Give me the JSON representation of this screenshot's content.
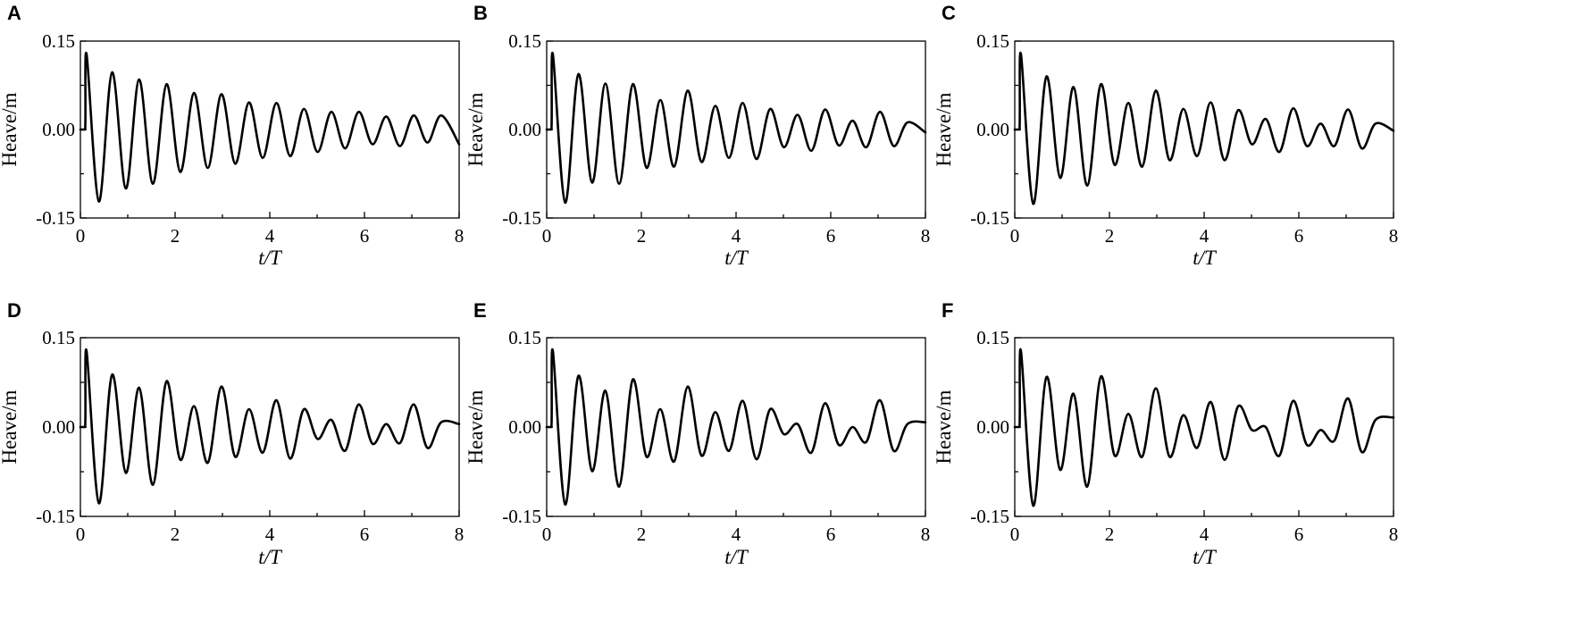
{
  "figure": {
    "panel_letters": [
      "A",
      "B",
      "C",
      "D",
      "E",
      "F"
    ]
  },
  "chart_data": [
    {
      "type": "line",
      "panel": "A",
      "xlabel": "t/T",
      "ylabel": "Heave/m",
      "xlim": [
        0,
        8
      ],
      "ylim": [
        -0.15,
        0.15
      ],
      "x_ticks": [
        "0",
        "2",
        "4",
        "6",
        "8"
      ],
      "y_ticks": [
        "0.15",
        "0.00",
        "-0.15"
      ],
      "grid": false,
      "series": [
        {
          "x": [
            0,
            0.1,
            0.13,
            0.39,
            0.67,
            0.96,
            1.24,
            1.53,
            1.82,
            2.11,
            2.4,
            2.69,
            2.98,
            3.27,
            3.56,
            3.85,
            4.14,
            4.43,
            4.72,
            5.01,
            5.3,
            5.59,
            5.88,
            6.17,
            6.46,
            6.75,
            7.04,
            7.33,
            7.62,
            8.0
          ],
          "y": [
            0.0,
            0.0,
            0.128,
            -0.122,
            0.097,
            -0.1,
            0.085,
            -0.092,
            0.077,
            -0.072,
            0.062,
            -0.065,
            0.06,
            -0.058,
            0.046,
            -0.048,
            0.045,
            -0.045,
            0.035,
            -0.038,
            0.03,
            -0.032,
            0.03,
            -0.025,
            0.022,
            -0.028,
            0.024,
            -0.022,
            0.024,
            -0.025
          ]
        }
      ]
    },
    {
      "type": "line",
      "panel": "B",
      "xlabel": "t/T",
      "ylabel": "Heave/m",
      "xlim": [
        0,
        8
      ],
      "ylim": [
        -0.15,
        0.15
      ],
      "x_ticks": [
        "0",
        "2",
        "4",
        "6",
        "8"
      ],
      "y_ticks": [
        "0.15",
        "0.00",
        "-0.15"
      ],
      "grid": false,
      "series": [
        {
          "x": [
            0,
            0.1,
            0.13,
            0.39,
            0.67,
            0.96,
            1.24,
            1.53,
            1.82,
            2.11,
            2.4,
            2.69,
            2.98,
            3.27,
            3.56,
            3.85,
            4.14,
            4.43,
            4.72,
            5.01,
            5.3,
            5.59,
            5.88,
            6.17,
            6.46,
            6.75,
            7.04,
            7.33,
            7.62,
            8.0
          ],
          "y": [
            0.0,
            0.0,
            0.128,
            -0.124,
            0.094,
            -0.09,
            0.078,
            -0.092,
            0.077,
            -0.065,
            0.05,
            -0.063,
            0.066,
            -0.055,
            0.04,
            -0.048,
            0.045,
            -0.05,
            0.035,
            -0.03,
            0.025,
            -0.036,
            0.034,
            -0.027,
            0.015,
            -0.03,
            0.03,
            -0.028,
            0.012,
            -0.005
          ]
        }
      ]
    },
    {
      "type": "line",
      "panel": "C",
      "xlabel": "t/T",
      "ylabel": "Heave/m",
      "xlim": [
        0,
        8
      ],
      "ylim": [
        -0.15,
        0.15
      ],
      "x_ticks": [
        "0",
        "2",
        "4",
        "6",
        "8"
      ],
      "y_ticks": [
        "0.15",
        "0.00",
        "-0.15"
      ],
      "grid": false,
      "series": [
        {
          "x": [
            0,
            0.1,
            0.13,
            0.39,
            0.67,
            0.96,
            1.24,
            1.53,
            1.82,
            2.11,
            2.4,
            2.69,
            2.98,
            3.27,
            3.56,
            3.85,
            4.14,
            4.43,
            4.72,
            5.01,
            5.3,
            5.59,
            5.88,
            6.17,
            6.46,
            6.75,
            7.04,
            7.33,
            7.62,
            8.0
          ],
          "y": [
            0.0,
            0.0,
            0.128,
            -0.126,
            0.09,
            -0.082,
            0.072,
            -0.095,
            0.077,
            -0.06,
            0.045,
            -0.063,
            0.066,
            -0.052,
            0.035,
            -0.045,
            0.046,
            -0.052,
            0.033,
            -0.025,
            0.018,
            -0.038,
            0.036,
            -0.028,
            0.01,
            -0.028,
            0.034,
            -0.032,
            0.01,
            -0.002
          ]
        }
      ]
    },
    {
      "type": "line",
      "panel": "D",
      "xlabel": "t/T",
      "ylabel": "Heave/m",
      "xlim": [
        0,
        8
      ],
      "ylim": [
        -0.15,
        0.15
      ],
      "x_ticks": [
        "0",
        "2",
        "4",
        "6",
        "8"
      ],
      "y_ticks": [
        "0.15",
        "0.00",
        "-0.15"
      ],
      "grid": false,
      "series": [
        {
          "x": [
            0,
            0.1,
            0.13,
            0.39,
            0.67,
            0.96,
            1.24,
            1.53,
            1.82,
            2.11,
            2.4,
            2.69,
            2.98,
            3.27,
            3.56,
            3.85,
            4.14,
            4.43,
            4.72,
            5.01,
            5.3,
            5.59,
            5.88,
            6.17,
            6.46,
            6.75,
            7.04,
            7.33,
            7.62,
            8.0
          ],
          "y": [
            0.0,
            0.0,
            0.128,
            -0.128,
            0.088,
            -0.077,
            0.066,
            -0.097,
            0.077,
            -0.055,
            0.035,
            -0.06,
            0.068,
            -0.05,
            0.03,
            -0.043,
            0.045,
            -0.053,
            0.03,
            -0.02,
            0.012,
            -0.04,
            0.038,
            -0.028,
            0.005,
            -0.027,
            0.038,
            -0.035,
            0.008,
            0.005
          ]
        }
      ]
    },
    {
      "type": "line",
      "panel": "E",
      "xlabel": "t/T",
      "ylabel": "Heave/m",
      "xlim": [
        0,
        8
      ],
      "ylim": [
        -0.15,
        0.15
      ],
      "x_ticks": [
        "0",
        "2",
        "4",
        "6",
        "8"
      ],
      "y_ticks": [
        "0.15",
        "0.00",
        "-0.15"
      ],
      "grid": false,
      "series": [
        {
          "x": [
            0,
            0.1,
            0.13,
            0.39,
            0.67,
            0.96,
            1.24,
            1.53,
            1.82,
            2.11,
            2.4,
            2.69,
            2.98,
            3.27,
            3.56,
            3.85,
            4.14,
            4.43,
            4.72,
            5.01,
            5.3,
            5.59,
            5.88,
            6.17,
            6.46,
            6.75,
            7.04,
            7.33,
            7.62,
            8.0
          ],
          "y": [
            0.0,
            0.0,
            0.128,
            -0.13,
            0.086,
            -0.074,
            0.061,
            -0.1,
            0.08,
            -0.05,
            0.03,
            -0.058,
            0.068,
            -0.048,
            0.025,
            -0.04,
            0.044,
            -0.054,
            0.03,
            -0.012,
            0.005,
            -0.043,
            0.04,
            -0.03,
            0.0,
            -0.025,
            0.045,
            -0.04,
            0.005,
            0.008
          ]
        }
      ]
    },
    {
      "type": "line",
      "panel": "F",
      "xlabel": "t/T",
      "ylabel": "Heave/m",
      "xlim": [
        0,
        8
      ],
      "ylim": [
        -0.15,
        0.15
      ],
      "x_ticks": [
        "0",
        "2",
        "4",
        "6",
        "8"
      ],
      "y_ticks": [
        "0.15",
        "0.00",
        "-0.15"
      ],
      "grid": false,
      "series": [
        {
          "x": [
            0,
            0.1,
            0.13,
            0.39,
            0.67,
            0.96,
            1.24,
            1.53,
            1.82,
            2.11,
            2.4,
            2.69,
            2.98,
            3.27,
            3.56,
            3.85,
            4.14,
            4.43,
            4.72,
            5.01,
            5.3,
            5.59,
            5.88,
            6.17,
            6.46,
            6.75,
            7.04,
            7.33,
            7.62,
            8.0
          ],
          "y": [
            0.0,
            0.0,
            0.128,
            -0.132,
            0.084,
            -0.072,
            0.056,
            -0.1,
            0.085,
            -0.048,
            0.022,
            -0.05,
            0.065,
            -0.05,
            0.02,
            -0.035,
            0.042,
            -0.055,
            0.035,
            -0.005,
            0.0,
            -0.048,
            0.044,
            -0.03,
            -0.005,
            -0.023,
            0.048,
            -0.042,
            0.012,
            0.016
          ]
        }
      ]
    }
  ]
}
